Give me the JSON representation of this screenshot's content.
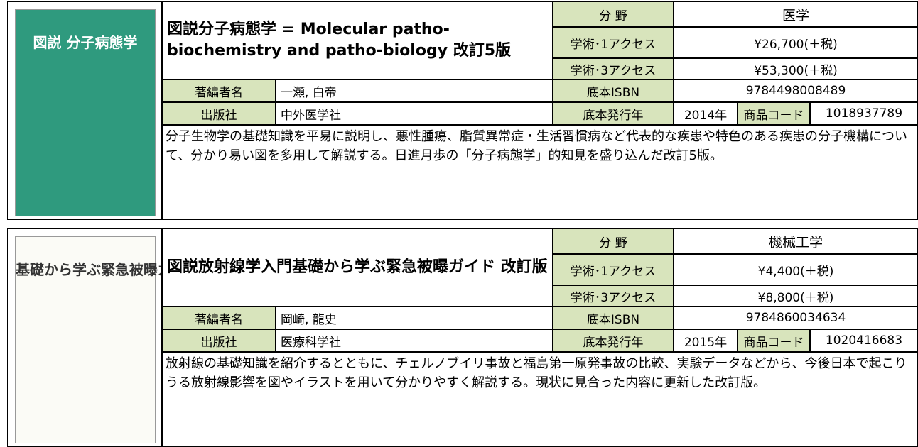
{
  "books": [
    {
      "cover_title": "図説 分子病態学",
      "title": "図説分子病態学 = Molecular patho-biochemistry and patho-biology 改訂5版",
      "field_label": "分 野",
      "field": "医学",
      "access1_label": "学術･1アクセス",
      "access1_price": "¥26,700(＋税)",
      "access3_label": "学術･3アクセス",
      "access3_price": "¥53,300(＋税)",
      "author_label": "著編者名",
      "author": "一瀬, 白帝",
      "publisher_label": "出版社",
      "publisher": "中外医学社",
      "isbn_label": "底本ISBN",
      "isbn": "9784498008489",
      "year_label": "底本発行年",
      "year": "2014年",
      "code_label": "商品コード",
      "code": "1018937789",
      "description": "分子生物学の基礎知識を平易に説明し、悪性腫瘍、脂質異常症・生活習慣病など代表的な疾患や特色のある疾患の分子機構について、分かり易い図を多用して解説する。日進月歩の「分子病態学」的知見を盛り込んだ改訂5版。"
    },
    {
      "cover_title": "基礎から学ぶ緊急被曝ガイド",
      "title": "図説放射線学入門基礎から学ぶ緊急被曝ガイド 改訂版",
      "field_label": "分 野",
      "field": "機械工学",
      "access1_label": "学術･1アクセス",
      "access1_price": "¥4,400(＋税)",
      "access3_label": "学術･3アクセス",
      "access3_price": "¥8,800(＋税)",
      "author_label": "著編者名",
      "author": "岡崎, 龍史",
      "publisher_label": "出版社",
      "publisher": "医療科学社",
      "isbn_label": "底本ISBN",
      "isbn": "9784860034634",
      "year_label": "底本発行年",
      "year": "2015年",
      "code_label": "商品コード",
      "code": "1020416683",
      "description": "放射線の基礎知識を紹介するとともに、チェルノブイリ事故と福島第一原発事故の比較、実験データなどから、今後日本で起こりうる放射線影響を図やイラストを用いて分かりやすく解説する。現状に見合った内容に更新した改訂版。"
    }
  ]
}
